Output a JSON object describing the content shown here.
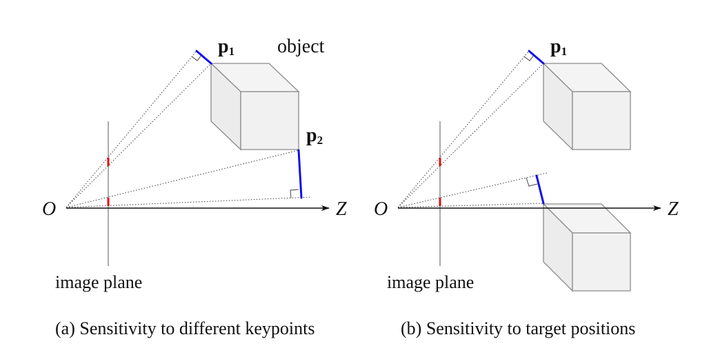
{
  "labels": {
    "origin": "O",
    "axis": "Z",
    "point_bold": "p",
    "p1_sub": "1",
    "p2_sub": "2",
    "object": "object",
    "image_plane": "image plane"
  },
  "captions": {
    "a": "(a) Sensitivity to different keypoints",
    "b": "(b) Sensitivity to target positions"
  },
  "colors": {
    "sensitivity_marks": "#e01010",
    "keypoint_offsets": "#1010e8"
  }
}
